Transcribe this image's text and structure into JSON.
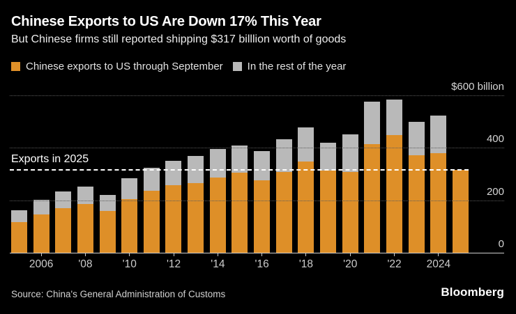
{
  "header": {
    "title": "Chinese Exports to US Are Down 17% This Year",
    "subtitle": "But Chinese firms still reported shipping $317 billlion worth of goods"
  },
  "legend": {
    "items": [
      {
        "label": "Chinese exports to US through September",
        "color": "#DE8F28"
      },
      {
        "label": "In the rest of the year",
        "color": "#B9B9B9"
      }
    ]
  },
  "annotation": {
    "label": "Exports in 2025",
    "value": 317
  },
  "chart_data": {
    "type": "bar",
    "stacked": true,
    "title": "Chinese Exports to US Are Down 17% This Year",
    "subtitle": "But Chinese firms still reported shipping $317 billlion worth of goods",
    "categories": [
      2005,
      2006,
      2007,
      2008,
      2009,
      2010,
      2011,
      2012,
      2013,
      2014,
      2015,
      2016,
      2017,
      2018,
      2019,
      2020,
      2021,
      2022,
      2023,
      2024,
      2025
    ],
    "series": [
      {
        "name": "Chinese exports to US through September",
        "color": "#DE8F28",
        "values": [
          117,
          146,
          170,
          186,
          159,
          204,
          236,
          257,
          265,
          286,
          305,
          277,
          309,
          348,
          312,
          309,
          413,
          448,
          371,
          381,
          317
        ]
      },
      {
        "name": "In the rest of the year",
        "color": "#B9B9B9",
        "values": [
          45,
          56,
          63,
          66,
          61,
          80,
          89,
          94,
          103,
          110,
          105,
          110,
          123,
          131,
          107,
          143,
          163,
          135,
          129,
          143,
          0
        ]
      }
    ],
    "ylabel": "$ billion",
    "ylim": [
      0,
      600
    ],
    "yticks": [
      {
        "value": 600,
        "label": "$600 billion"
      },
      {
        "value": 400,
        "label": "400"
      },
      {
        "value": 200,
        "label": "200"
      },
      {
        "value": 0,
        "label": "0"
      }
    ],
    "xticks": [
      {
        "index": 1,
        "label": "2006"
      },
      {
        "index": 3,
        "label": "'08"
      },
      {
        "index": 5,
        "label": "'10"
      },
      {
        "index": 7,
        "label": "'12"
      },
      {
        "index": 9,
        "label": "'14"
      },
      {
        "index": 11,
        "label": "'16"
      },
      {
        "index": 13,
        "label": "'18"
      },
      {
        "index": 15,
        "label": "'20"
      },
      {
        "index": 17,
        "label": "'22"
      },
      {
        "index": 19,
        "label": "2024"
      }
    ],
    "reference_line": {
      "label": "Exports in 2025",
      "value": 317,
      "style": "dashed-white"
    },
    "grid": "horizontal-dotted",
    "legend_position": "top",
    "background": "#000000"
  },
  "footer": {
    "source": "Source: China's General Administration of Customs",
    "brand": "Bloomberg"
  }
}
